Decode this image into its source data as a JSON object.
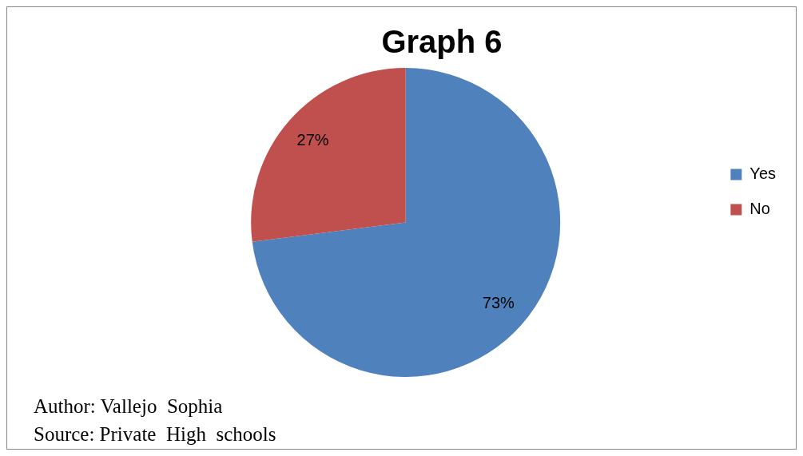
{
  "chart_data": {
    "type": "pie",
    "title": "Graph 6",
    "categories": [
      "Yes",
      "No"
    ],
    "values": [
      73,
      27
    ],
    "value_labels": [
      "73%",
      "27%"
    ],
    "colors": [
      "#4f81bd",
      "#c0504d"
    ],
    "legend": "right",
    "annotations": [
      "Author: Vallejo  Sophia",
      "Source: Private  High  schools"
    ]
  }
}
